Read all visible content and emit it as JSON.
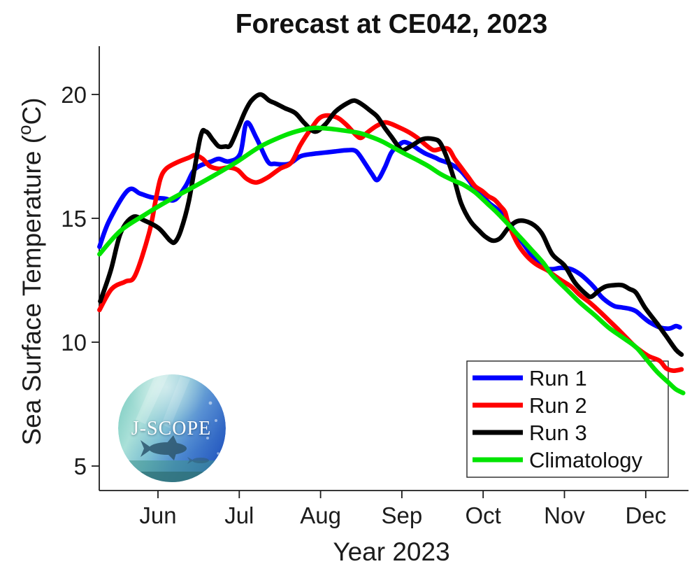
{
  "title": "Forecast at CE042, 2023",
  "xlabel": "Year 2023",
  "ylabel": {
    "pre": "Sea Surface Temperature (",
    "sup": "o",
    "post": "C)"
  },
  "logo": {
    "text": "J-SCOPE"
  },
  "axis_color": "#1c1c1c",
  "chart_data": {
    "type": "line",
    "title": "Forecast at CE042, 2023",
    "xlabel": "Year 2023",
    "ylabel": "Sea Surface Temperature (°C)",
    "x_unit": "months after Jun 1, 2023",
    "x_ticks": [
      0,
      1,
      2,
      3,
      4,
      5,
      6
    ],
    "x_tick_labels": [
      "Jun",
      "Jul",
      "Aug",
      "Sep",
      "Oct",
      "Nov",
      "Dec"
    ],
    "xlim": [
      -0.72,
      6.52
    ],
    "y_ticks": [
      20,
      15,
      10,
      5
    ],
    "ylim": [
      4,
      22
    ],
    "grid": false,
    "legend_position": "lower right",
    "series": [
      {
        "name": "Run 1",
        "color": "#0000ff",
        "points": [
          [
            -0.72,
            13.85
          ],
          [
            -0.6,
            14.9
          ],
          [
            -0.37,
            16.13
          ],
          [
            -0.22,
            16.0
          ],
          [
            -0.08,
            15.85
          ],
          [
            0.08,
            15.8
          ],
          [
            0.21,
            15.75
          ],
          [
            0.34,
            16.3
          ],
          [
            0.46,
            17.0
          ],
          [
            0.66,
            17.3
          ],
          [
            0.75,
            17.4
          ],
          [
            0.87,
            17.3
          ],
          [
            1.01,
            17.6
          ],
          [
            1.09,
            18.85
          ],
          [
            1.21,
            18.25
          ],
          [
            1.35,
            17.3
          ],
          [
            1.44,
            17.2
          ],
          [
            1.61,
            17.2
          ],
          [
            1.75,
            17.5
          ],
          [
            1.9,
            17.6
          ],
          [
            2.04,
            17.65
          ],
          [
            2.18,
            17.7
          ],
          [
            2.33,
            17.75
          ],
          [
            2.44,
            17.7
          ],
          [
            2.55,
            17.2
          ],
          [
            2.63,
            16.8
          ],
          [
            2.7,
            16.55
          ],
          [
            2.79,
            17.05
          ],
          [
            2.87,
            17.65
          ],
          [
            2.96,
            17.95
          ],
          [
            3.03,
            18.08
          ],
          [
            3.13,
            17.95
          ],
          [
            3.22,
            17.75
          ],
          [
            3.3,
            17.6
          ],
          [
            3.41,
            17.45
          ],
          [
            3.47,
            17.35
          ],
          [
            3.56,
            17.25
          ],
          [
            3.65,
            17.1
          ],
          [
            3.73,
            16.9
          ],
          [
            3.82,
            16.55
          ],
          [
            3.9,
            16.2
          ],
          [
            3.99,
            15.9
          ],
          [
            4.08,
            15.6
          ],
          [
            4.16,
            15.4
          ],
          [
            4.25,
            15.1
          ],
          [
            4.38,
            14.5
          ],
          [
            4.51,
            13.9
          ],
          [
            4.65,
            13.3
          ],
          [
            4.76,
            13.0
          ],
          [
            4.85,
            12.95
          ],
          [
            4.96,
            13.0
          ],
          [
            5.08,
            12.95
          ],
          [
            5.19,
            12.75
          ],
          [
            5.28,
            12.5
          ],
          [
            5.37,
            12.2
          ],
          [
            5.45,
            11.85
          ],
          [
            5.54,
            11.6
          ],
          [
            5.62,
            11.45
          ],
          [
            5.71,
            11.4
          ],
          [
            5.8,
            11.35
          ],
          [
            5.88,
            11.25
          ],
          [
            5.97,
            11.0
          ],
          [
            6.05,
            10.8
          ],
          [
            6.17,
            10.6
          ],
          [
            6.29,
            10.55
          ],
          [
            6.37,
            10.65
          ],
          [
            6.42,
            10.6
          ]
        ]
      },
      {
        "name": "Run 2",
        "color": "#ff0000",
        "points": [
          [
            -0.72,
            11.3
          ],
          [
            -0.57,
            12.15
          ],
          [
            -0.4,
            12.45
          ],
          [
            -0.28,
            12.7
          ],
          [
            -0.11,
            14.4
          ],
          [
            -0.03,
            15.7
          ],
          [
            0.03,
            16.6
          ],
          [
            0.1,
            17.0
          ],
          [
            0.23,
            17.25
          ],
          [
            0.38,
            17.45
          ],
          [
            0.46,
            17.55
          ],
          [
            0.55,
            17.4
          ],
          [
            0.64,
            17.1
          ],
          [
            0.75,
            17.0
          ],
          [
            0.87,
            17.05
          ],
          [
            0.98,
            16.95
          ],
          [
            1.09,
            16.6
          ],
          [
            1.21,
            16.45
          ],
          [
            1.35,
            16.65
          ],
          [
            1.5,
            17.0
          ],
          [
            1.64,
            17.25
          ],
          [
            1.75,
            17.95
          ],
          [
            1.88,
            18.6
          ],
          [
            2.01,
            19.1
          ],
          [
            2.18,
            19.1
          ],
          [
            2.31,
            18.8
          ],
          [
            2.44,
            18.35
          ],
          [
            2.5,
            18.25
          ],
          [
            2.57,
            18.45
          ],
          [
            2.7,
            18.75
          ],
          [
            2.81,
            18.87
          ],
          [
            2.98,
            18.65
          ],
          [
            3.1,
            18.45
          ],
          [
            3.19,
            18.25
          ],
          [
            3.28,
            18.0
          ],
          [
            3.36,
            17.8
          ],
          [
            3.41,
            17.75
          ],
          [
            3.5,
            17.82
          ],
          [
            3.58,
            17.78
          ],
          [
            3.65,
            17.4
          ],
          [
            3.73,
            17.05
          ],
          [
            3.82,
            16.65
          ],
          [
            3.9,
            16.3
          ],
          [
            3.99,
            16.1
          ],
          [
            4.06,
            15.9
          ],
          [
            4.14,
            15.75
          ],
          [
            4.21,
            15.5
          ],
          [
            4.27,
            15.25
          ],
          [
            4.31,
            14.8
          ],
          [
            4.42,
            14.0
          ],
          [
            4.53,
            13.5
          ],
          [
            4.65,
            13.15
          ],
          [
            4.79,
            12.9
          ],
          [
            4.85,
            12.75
          ],
          [
            4.96,
            12.5
          ],
          [
            5.08,
            12.25
          ],
          [
            5.19,
            11.9
          ],
          [
            5.31,
            11.6
          ],
          [
            5.43,
            11.25
          ],
          [
            5.54,
            10.9
          ],
          [
            5.65,
            10.55
          ],
          [
            5.77,
            10.15
          ],
          [
            5.88,
            9.8
          ],
          [
            6.03,
            9.45
          ],
          [
            6.17,
            9.25
          ],
          [
            6.25,
            8.95
          ],
          [
            6.34,
            8.85
          ],
          [
            6.44,
            8.9
          ]
        ]
      },
      {
        "name": "Run 3",
        "color": "#000000",
        "points": [
          [
            -0.71,
            11.65
          ],
          [
            -0.58,
            12.9
          ],
          [
            -0.46,
            14.4
          ],
          [
            -0.31,
            15.05
          ],
          [
            -0.16,
            14.9
          ],
          [
            0.01,
            14.6
          ],
          [
            0.15,
            14.1
          ],
          [
            0.21,
            14.05
          ],
          [
            0.28,
            14.5
          ],
          [
            0.38,
            15.7
          ],
          [
            0.52,
            18.25
          ],
          [
            0.59,
            18.5
          ],
          [
            0.68,
            18.15
          ],
          [
            0.75,
            17.9
          ],
          [
            0.83,
            17.9
          ],
          [
            0.89,
            17.95
          ],
          [
            0.98,
            18.6
          ],
          [
            1.07,
            19.3
          ],
          [
            1.15,
            19.75
          ],
          [
            1.26,
            20.0
          ],
          [
            1.37,
            19.75
          ],
          [
            1.44,
            19.65
          ],
          [
            1.56,
            19.45
          ],
          [
            1.69,
            19.25
          ],
          [
            1.8,
            18.85
          ],
          [
            1.93,
            18.5
          ],
          [
            2.06,
            18.8
          ],
          [
            2.18,
            19.3
          ],
          [
            2.33,
            19.65
          ],
          [
            2.42,
            19.75
          ],
          [
            2.51,
            19.6
          ],
          [
            2.61,
            19.35
          ],
          [
            2.7,
            19.1
          ],
          [
            2.79,
            18.65
          ],
          [
            2.87,
            18.3
          ],
          [
            2.98,
            17.8
          ],
          [
            3.02,
            17.75
          ],
          [
            3.13,
            17.95
          ],
          [
            3.26,
            18.2
          ],
          [
            3.39,
            18.2
          ],
          [
            3.47,
            18.05
          ],
          [
            3.56,
            17.4
          ],
          [
            3.65,
            16.5
          ],
          [
            3.73,
            15.6
          ],
          [
            3.84,
            14.9
          ],
          [
            3.95,
            14.5
          ],
          [
            4.03,
            14.25
          ],
          [
            4.12,
            14.1
          ],
          [
            4.21,
            14.2
          ],
          [
            4.32,
            14.65
          ],
          [
            4.44,
            14.9
          ],
          [
            4.59,
            14.8
          ],
          [
            4.72,
            14.4
          ],
          [
            4.85,
            13.55
          ],
          [
            5.0,
            13.1
          ],
          [
            5.13,
            12.4
          ],
          [
            5.28,
            11.9
          ],
          [
            5.34,
            11.85
          ],
          [
            5.43,
            12.1
          ],
          [
            5.51,
            12.25
          ],
          [
            5.6,
            12.3
          ],
          [
            5.71,
            12.3
          ],
          [
            5.8,
            12.15
          ],
          [
            5.88,
            12.0
          ],
          [
            5.99,
            11.4
          ],
          [
            6.14,
            10.75
          ],
          [
            6.25,
            10.25
          ],
          [
            6.37,
            9.7
          ],
          [
            6.44,
            9.5
          ]
        ]
      },
      {
        "name": "Climatology",
        "color": "#00e400",
        "points": [
          [
            -0.72,
            13.55
          ],
          [
            -0.46,
            14.5
          ],
          [
            -0.16,
            15.15
          ],
          [
            0.12,
            15.7
          ],
          [
            0.4,
            16.2
          ],
          [
            0.7,
            16.75
          ],
          [
            0.98,
            17.3
          ],
          [
            1.26,
            17.9
          ],
          [
            1.56,
            18.35
          ],
          [
            1.75,
            18.55
          ],
          [
            1.93,
            18.65
          ],
          [
            2.1,
            18.62
          ],
          [
            2.27,
            18.55
          ],
          [
            2.47,
            18.45
          ],
          [
            2.61,
            18.3
          ],
          [
            2.76,
            18.1
          ],
          [
            2.9,
            17.85
          ],
          [
            3.04,
            17.6
          ],
          [
            3.19,
            17.35
          ],
          [
            3.33,
            17.1
          ],
          [
            3.47,
            16.8
          ],
          [
            3.62,
            16.55
          ],
          [
            3.76,
            16.35
          ],
          [
            3.9,
            16.05
          ],
          [
            4.05,
            15.6
          ],
          [
            4.18,
            15.2
          ],
          [
            4.31,
            14.75
          ],
          [
            4.45,
            14.25
          ],
          [
            4.59,
            13.75
          ],
          [
            4.74,
            13.2
          ],
          [
            4.85,
            12.7
          ],
          [
            5.02,
            12.15
          ],
          [
            5.19,
            11.6
          ],
          [
            5.37,
            11.1
          ],
          [
            5.54,
            10.6
          ],
          [
            5.71,
            10.2
          ],
          [
            5.88,
            9.8
          ],
          [
            6.01,
            9.3
          ],
          [
            6.14,
            8.8
          ],
          [
            6.27,
            8.4
          ],
          [
            6.37,
            8.1
          ],
          [
            6.46,
            7.95
          ]
        ]
      }
    ]
  }
}
